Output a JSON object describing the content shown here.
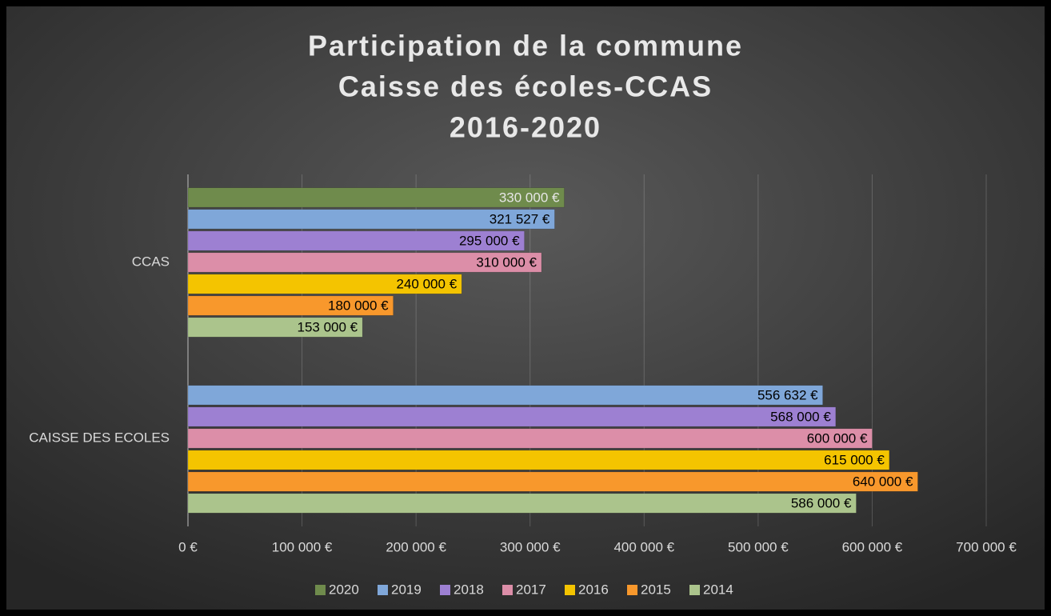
{
  "chart_data": {
    "type": "bar",
    "orientation": "horizontal",
    "title": [
      "Participation de la commune",
      "Caisse des écoles-CCAS",
      "2016-2020"
    ],
    "categories": [
      "CCAS",
      "CAISSE DES ECOLES"
    ],
    "series": [
      {
        "name": "2020",
        "color": "#6f8b4c",
        "label_color": "#e6e6e6",
        "values": [
          330000,
          null
        ],
        "value_labels": [
          "330 000 €",
          null
        ]
      },
      {
        "name": "2019",
        "color": "#7fa7d9",
        "label_color": "#000000",
        "values": [
          321527,
          556632
        ],
        "value_labels": [
          "321 527 €",
          "556 632 €"
        ]
      },
      {
        "name": "2018",
        "color": "#9d80d2",
        "label_color": "#000000",
        "values": [
          295000,
          568000
        ],
        "value_labels": [
          "295 000 €",
          "568 000 €"
        ]
      },
      {
        "name": "2017",
        "color": "#dc8ea8",
        "label_color": "#000000",
        "values": [
          310000,
          600000
        ],
        "value_labels": [
          "310 000 €",
          "600 000 €"
        ]
      },
      {
        "name": "2016",
        "color": "#f4c400",
        "label_color": "#000000",
        "values": [
          240000,
          615000
        ],
        "value_labels": [
          "240 000 €",
          "615 000 €"
        ]
      },
      {
        "name": "2015",
        "color": "#f8982c",
        "label_color": "#000000",
        "values": [
          180000,
          640000
        ],
        "value_labels": [
          "180 000 €",
          "640 000 €"
        ]
      },
      {
        "name": "2014",
        "color": "#abc48c",
        "label_color": "#000000",
        "values": [
          153000,
          586000
        ],
        "value_labels": [
          "153 000 €",
          "586 000 €"
        ]
      }
    ],
    "xlim": [
      0,
      700000
    ],
    "xticks": [
      {
        "value": 0,
        "label": "0 €"
      },
      {
        "value": 100000,
        "label": "100 000 €"
      },
      {
        "value": 200000,
        "label": "200 000 €"
      },
      {
        "value": 300000,
        "label": "300 000 €"
      },
      {
        "value": 400000,
        "label": "400 000 €"
      },
      {
        "value": 500000,
        "label": "500 000 €"
      },
      {
        "value": 600000,
        "label": "600 000 €"
      },
      {
        "value": 700000,
        "label": "700 000 €"
      }
    ],
    "grid": true,
    "legend": "bottom"
  }
}
